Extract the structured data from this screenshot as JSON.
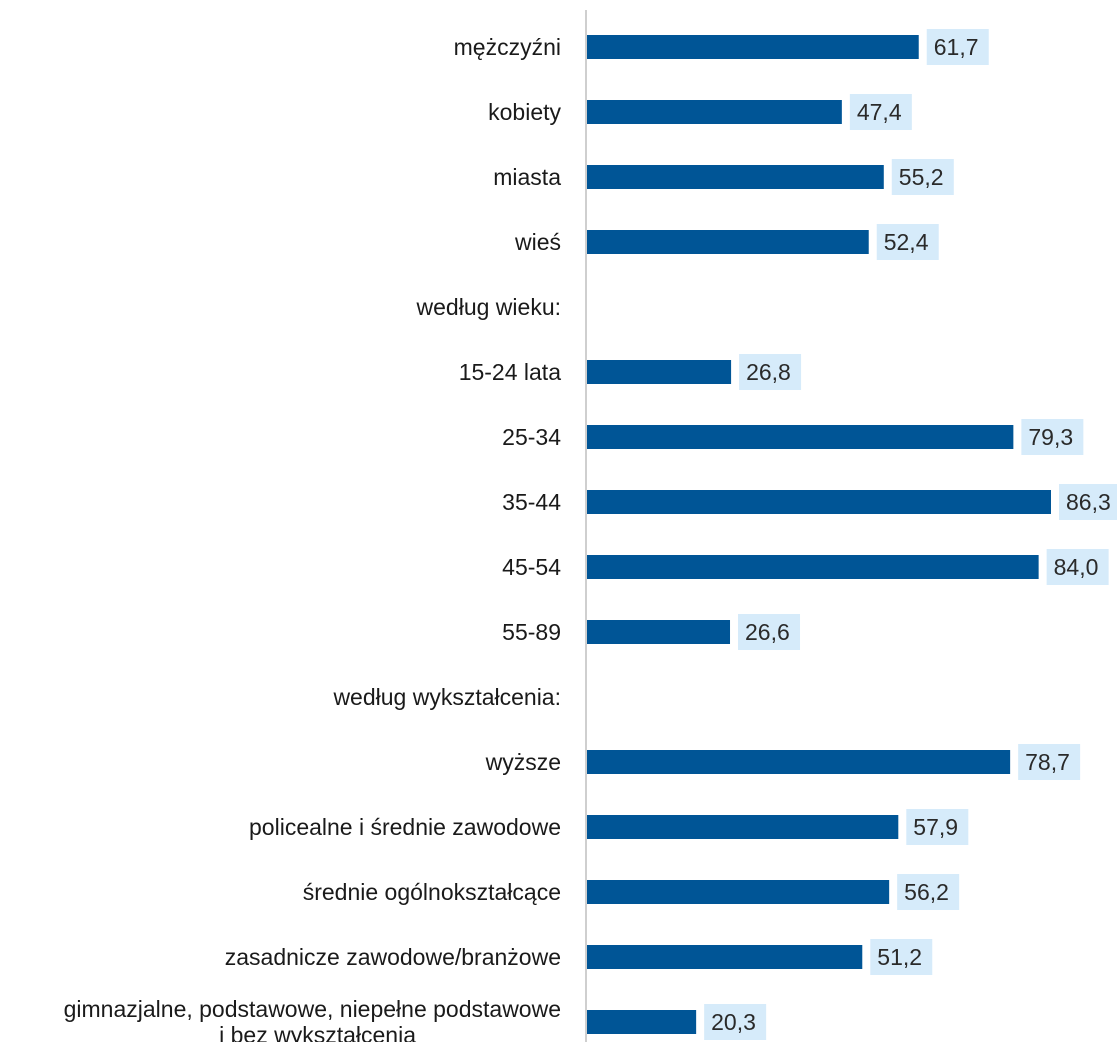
{
  "chart_data": {
    "type": "bar",
    "orientation": "horizontal",
    "title": "",
    "xlabel": "",
    "ylabel": "",
    "grid": false,
    "legend": "none",
    "xlim": [
      0,
      90
    ],
    "categories": [
      "mężczyźni",
      "kobiety",
      "miasta",
      "wieś",
      "według wieku:",
      "15-24 lata",
      "25-34",
      "35-44",
      "45-54",
      "55-89",
      "według wykształcenia:",
      "wyższe",
      "policealne i średnie zawodowe",
      "średnie ogólnokształcące",
      "zasadnicze zawodowe/branżowe",
      "gimnazjalne, podstawowe, niepełne podstawowe|i bez wykształcenia"
    ],
    "values": [
      61.7,
      47.4,
      55.2,
      52.4,
      null,
      26.8,
      79.3,
      86.3,
      84.0,
      26.6,
      null,
      78.7,
      57.9,
      56.2,
      51.2,
      20.3
    ],
    "data_labels": [
      "61,7",
      "47,4",
      "55,2",
      "52,4",
      "",
      "26,8",
      "79,3",
      "86,3",
      "84,0",
      "26,6",
      "",
      "78,7",
      "57,9",
      "56,2",
      "51,2",
      "20,3"
    ],
    "colors": {
      "bar": "#005596",
      "label_bg": "#d6ebfa",
      "label_text": "#2a2a2a",
      "category_text": "#1a1a1a",
      "axis": "#bfbfbf"
    }
  }
}
